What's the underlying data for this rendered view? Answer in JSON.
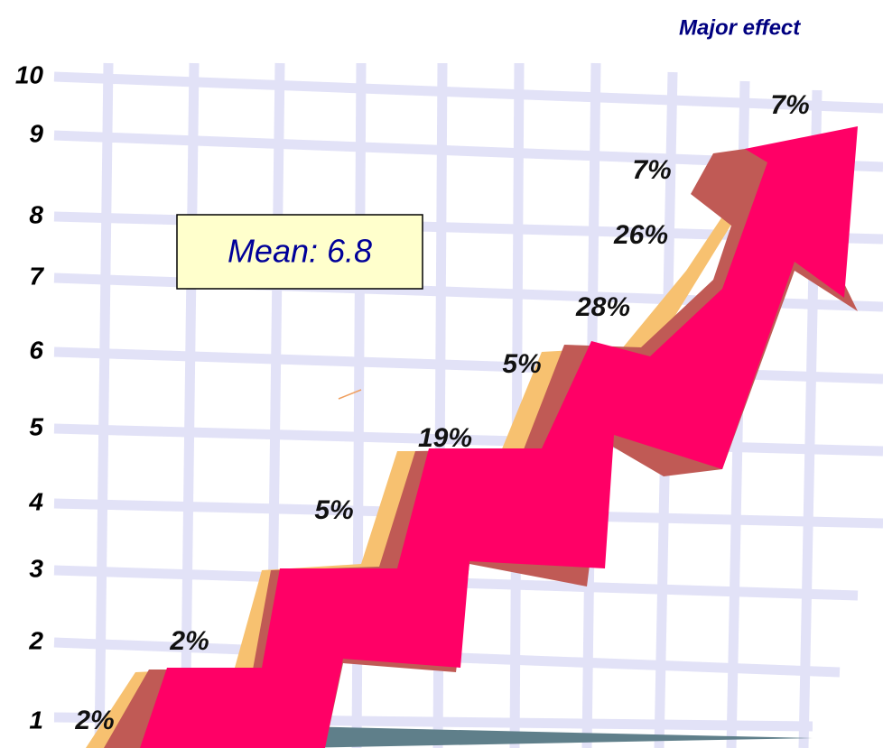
{
  "chart_data": {
    "type": "staircase",
    "title": "Major effect",
    "annotation": "Mean: 6.8",
    "categories": [
      "1",
      "2",
      "3",
      "4",
      "5",
      "6",
      "7",
      "8",
      "9",
      "10"
    ],
    "values": [
      2,
      2,
      null,
      5,
      19,
      5,
      28,
      26,
      7,
      7
    ],
    "value_labels": [
      "2%",
      "2%",
      null,
      "5%",
      "19%",
      "5%",
      "28%",
      "26%",
      "7%",
      "7%"
    ],
    "color": "#ff0066"
  }
}
